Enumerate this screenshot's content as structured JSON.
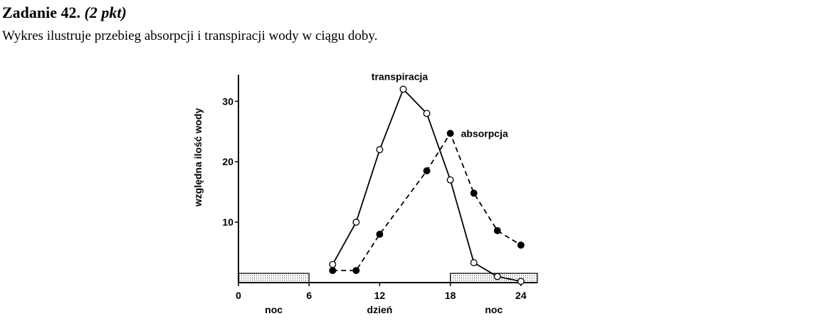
{
  "header": {
    "task": "Zadanie 42.",
    "points": "(2 pkt)",
    "intro": "Wykres ilustruje przebieg absorpcji i transpiracji wody w ciągu doby."
  },
  "chart_data": {
    "type": "line",
    "ylabel": "względna ilość wody",
    "xlim": [
      0,
      25.4
    ],
    "ylim": [
      0,
      34.4
    ],
    "xticks": [
      0,
      6,
      12,
      18,
      24
    ],
    "yticks": [
      10,
      20,
      30
    ],
    "periods": [
      {
        "label": "noc",
        "start": 0,
        "end": 6,
        "shaded": true
      },
      {
        "label": "dzień",
        "start": 6,
        "end": 18,
        "shaded": false
      },
      {
        "label": "noc",
        "start": 18,
        "end": 25.4,
        "shaded": true
      }
    ],
    "series": [
      {
        "name": "transpiracja",
        "color": "#000000",
        "style": "solid",
        "marker": "open",
        "x": [
          8,
          10,
          12,
          14,
          16,
          18,
          20,
          22,
          24
        ],
        "values": [
          3,
          10,
          22,
          32,
          28,
          17,
          3.3,
          1,
          0.2
        ]
      },
      {
        "name": "absorpcja",
        "color": "#000000",
        "style": "dashed",
        "marker": "filled",
        "x": [
          8,
          10,
          12,
          16,
          18,
          20,
          22,
          24
        ],
        "values": [
          2,
          2,
          8,
          18.5,
          24.7,
          14.8,
          8.6,
          6.2
        ]
      }
    ]
  }
}
